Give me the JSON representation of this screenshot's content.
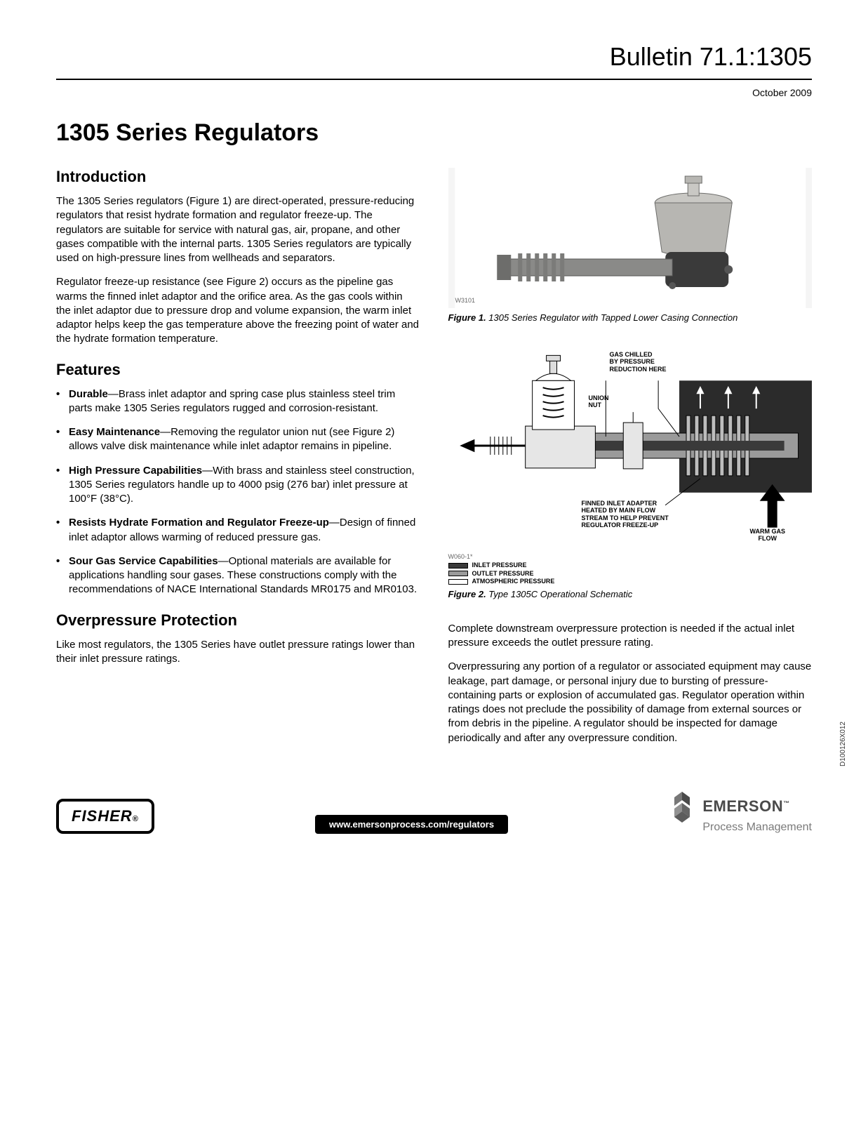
{
  "header": {
    "bulletin": "Bulletin 71.1:1305",
    "date": "October 2009"
  },
  "title": "1305 Series Regulators",
  "sections": {
    "intro_heading": "Introduction",
    "intro_p1": "The 1305 Series regulators (Figure 1) are direct-operated, pressure-reducing regulators that resist hydrate formation and regulator freeze-up.  The regulators are suitable for service with natural gas, air, propane, and other gases compatible with the internal parts.  1305 Series regulators are typically used on high-pressure lines from wellheads and separators.",
    "intro_p2": "Regulator freeze-up resistance (see Figure 2) occurs as the pipeline gas warms the finned inlet adaptor and the orifice area.  As the gas cools within the inlet adaptor due to pressure drop and volume expansion, the warm inlet adaptor helps keep the gas temperature above the freezing point of water and the hydrate formation temperature.",
    "features_heading": "Features",
    "features": [
      {
        "label": "Durable",
        "text": "—Brass inlet adaptor and spring case plus stainless steel trim parts make 1305 Series regulators rugged and corrosion-resistant."
      },
      {
        "label": "Easy Maintenance",
        "text": "—Removing the regulator union nut (see Figure 2) allows valve disk maintenance while inlet adaptor remains in pipeline."
      },
      {
        "label": "High Pressure Capabilities",
        "text": "—With brass and stainless steel construction, 1305 Series regulators handle up to 4000 psig (276 bar) inlet pressure at 100°F (38°C)."
      },
      {
        "label": "Resists Hydrate Formation and Regulator Freeze-up",
        "text": "—Design of finned inlet adaptor allows warming of reduced pressure gas."
      },
      {
        "label": "Sour Gas Service Capabilities",
        "text": "—Optional materials are available for applications handling sour gases.  These constructions comply with the recommendations of NACE International Standards MR0175 and MR0103."
      }
    ],
    "overpressure_heading": "Overpressure Protection",
    "overpressure_p1": "Like most regulators, the 1305 Series have outlet pressure ratings lower than their inlet pressure ratings.",
    "overpressure_p2": "Complete downstream overpressure protection is needed if the actual inlet pressure exceeds the outlet pressure rating.",
    "overpressure_p3": "Overpressuring any portion of a regulator or associated equipment may cause leakage, part damage, or personal injury due to bursting of pressure-containing parts or explosion of accumulated gas.  Regulator operation within ratings does not preclude the possibility of damage from external sources or from debris in the pipeline.  A regulator should be inspected for damage periodically and after any overpressure condition."
  },
  "figure1": {
    "photo_id": "W3101",
    "caption_label": "Figure 1.",
    "caption_text": "  1305 Series Regulator with Tapped Lower Casing Connection",
    "photo_colors": {
      "bg": "#f2f2f2",
      "body": "#8a8a88",
      "cap": "#c9c8c4",
      "detail": "#3a3a3a"
    }
  },
  "figure2": {
    "schematic_id": "W060-1*",
    "caption_label": "Figure 2.",
    "caption_text": "  Type 1305C Operational Schematic",
    "labels": {
      "gas_chilled": "GAS CHILLED\nBY PRESSURE\nREDUCTION HERE",
      "union_nut": "UNION\nNUT",
      "finned": "FINNED INLET ADAPTER\nHEATED BY MAIN FLOW\nSTREAM TO HELP PREVENT\nREGULATOR FREEZE-UP",
      "warm_gas": "WARM GAS\nFLOW"
    },
    "legend": {
      "inlet": "INLET PRESSURE",
      "outlet": "OUTLET PRESSURE",
      "atmos": "ATMOSPHERIC PRESSURE"
    },
    "colors": {
      "inlet": "#3a3a3a",
      "outlet": "#9a9a9a",
      "atmos": "#ffffff",
      "outline": "#000000",
      "block": "#2b2b2b"
    }
  },
  "footer": {
    "fisher": "FISHER",
    "url": "www.emersonprocess.com/regulators",
    "emerson": "EMERSON",
    "emerson_sub": "Process Management",
    "emerson_color": "#4a4a4a",
    "emerson_sub_color": "#7a7a7a"
  },
  "doc_id": "D100126X012"
}
